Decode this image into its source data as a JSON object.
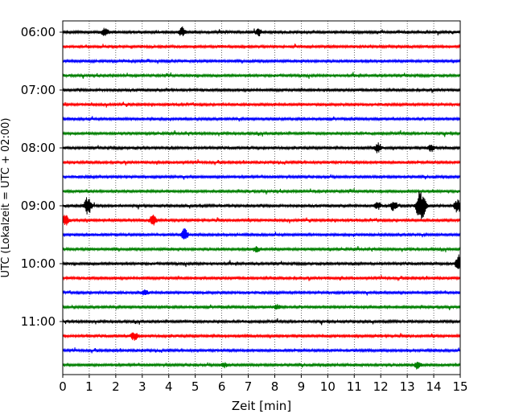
{
  "chart_data": {
    "type": "line",
    "title": "",
    "xlabel": "Zeit  [min]",
    "ylabel": "UTC (Lokalzeit = UTC + 02:00)",
    "xlim": [
      0,
      15
    ],
    "x_ticks": [
      "0",
      "1",
      "2",
      "3",
      "4",
      "5",
      "6",
      "7",
      "8",
      "9",
      "10",
      "11",
      "12",
      "13",
      "14",
      "15"
    ],
    "y_tick_labels": [
      "06:00",
      "07:00",
      "08:00",
      "09:00",
      "10:00",
      "11:00"
    ],
    "grid": "vertical dotted lines at each minute",
    "trace_interval_min": 15,
    "color_cycle": [
      "#000000",
      "#ff0000",
      "#0000ff",
      "#008000"
    ],
    "traces": [
      {
        "start": "06:00",
        "events": [
          {
            "t": 1.6,
            "amp": 5
          },
          {
            "t": 4.5,
            "amp": 5
          },
          {
            "t": 7.4,
            "amp": 4
          }
        ]
      },
      {
        "start": "06:15",
        "events": []
      },
      {
        "start": "06:30",
        "events": []
      },
      {
        "start": "06:45",
        "events": []
      },
      {
        "start": "07:00",
        "events": []
      },
      {
        "start": "07:15",
        "events": []
      },
      {
        "start": "07:30",
        "events": []
      },
      {
        "start": "07:45",
        "events": []
      },
      {
        "start": "08:00",
        "events": [
          {
            "t": 11.9,
            "amp": 6
          },
          {
            "t": 13.9,
            "amp": 4
          }
        ]
      },
      {
        "start": "08:15",
        "events": []
      },
      {
        "start": "08:30",
        "events": []
      },
      {
        "start": "08:45",
        "events": []
      },
      {
        "start": "09:00",
        "events": [
          {
            "t": 0.95,
            "amp": 11
          },
          {
            "t": 11.9,
            "amp": 4
          },
          {
            "t": 12.5,
            "amp": 6
          },
          {
            "t": 13.45,
            "amp": 16
          },
          {
            "t": 13.6,
            "amp": 10
          },
          {
            "t": 14.9,
            "amp": 8
          }
        ]
      },
      {
        "start": "09:15",
        "events": [
          {
            "t": 0.1,
            "amp": 7
          },
          {
            "t": 3.4,
            "amp": 6
          }
        ]
      },
      {
        "start": "09:30",
        "events": [
          {
            "t": 4.6,
            "amp": 7
          }
        ]
      },
      {
        "start": "09:45",
        "events": [
          {
            "t": 7.3,
            "amp": 3
          }
        ]
      },
      {
        "start": "10:00",
        "events": [
          {
            "t": 14.95,
            "amp": 10
          }
        ]
      },
      {
        "start": "10:15",
        "events": []
      },
      {
        "start": "10:30",
        "events": [
          {
            "t": 3.1,
            "amp": 3
          }
        ]
      },
      {
        "start": "10:45",
        "events": [
          {
            "t": 8.1,
            "amp": 3
          }
        ]
      },
      {
        "start": "11:00",
        "events": []
      },
      {
        "start": "11:15",
        "events": [
          {
            "t": 2.7,
            "amp": 5
          }
        ]
      },
      {
        "start": "11:30",
        "events": []
      },
      {
        "start": "11:45",
        "events": [
          {
            "t": 6.1,
            "amp": 3
          },
          {
            "t": 13.4,
            "amp": 5
          }
        ]
      }
    ]
  }
}
